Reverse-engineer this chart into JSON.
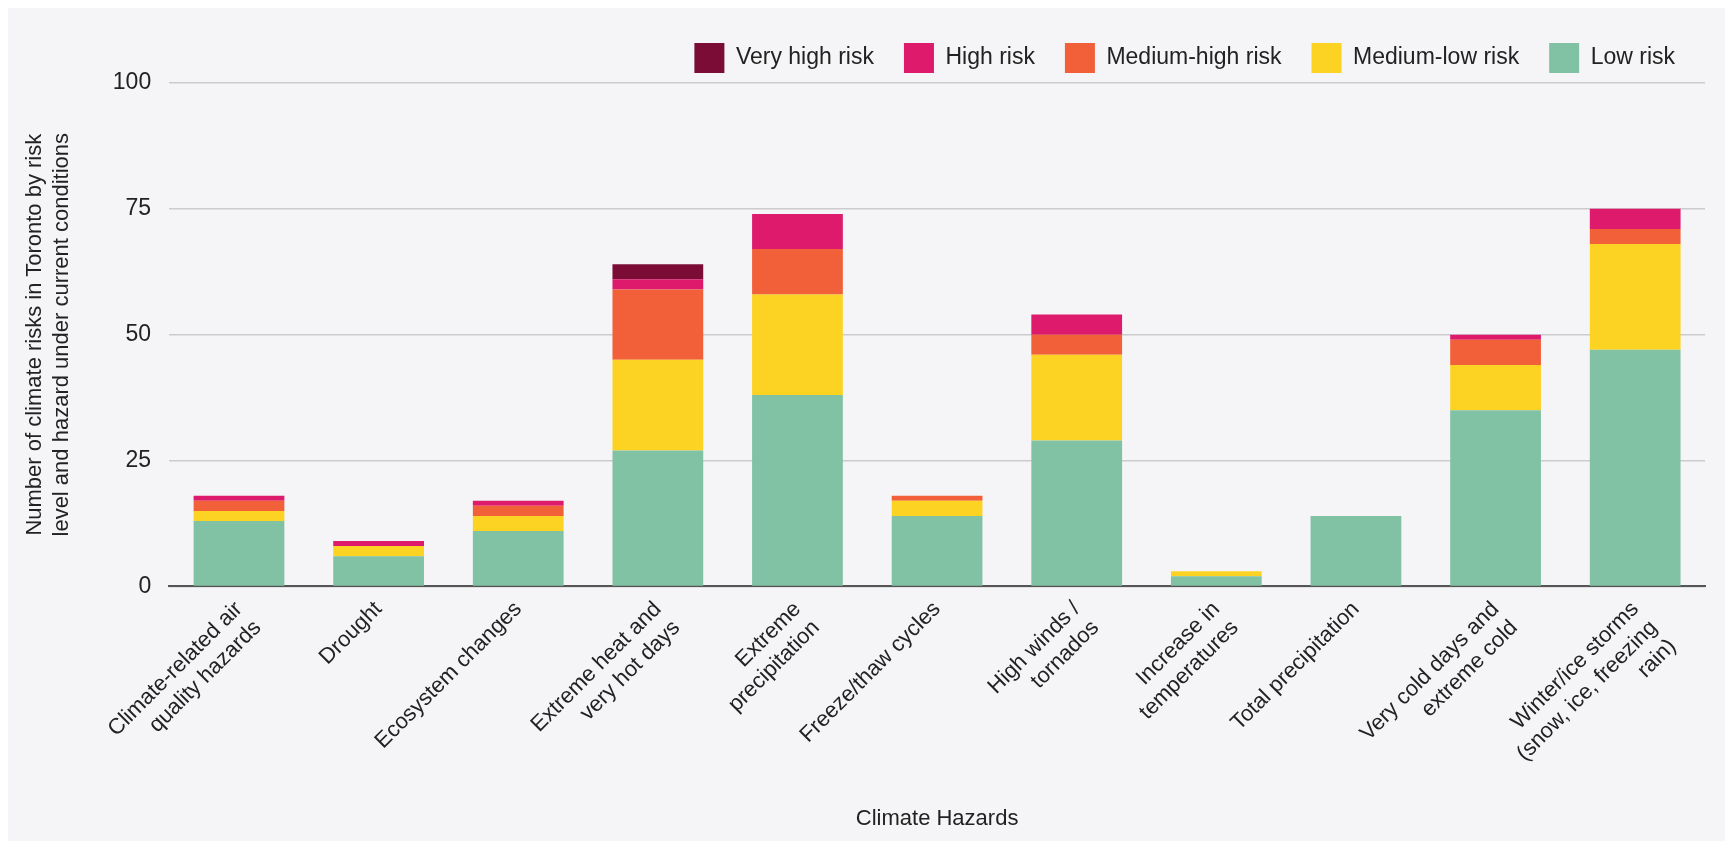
{
  "chart_data": {
    "type": "bar",
    "stacked": true,
    "xlabel": "Climate Hazards",
    "ylabel": "Number of climate risks in Toronto by risk level and hazard under current conditions",
    "categories": [
      "Climate-related air quality hazards",
      "Drought",
      "Ecosystem changes",
      "Extreme heat and very hot days",
      "Extreme precipitation",
      "Freeze/thaw cycles",
      "High winds / tornados",
      "Increase in temperatures",
      "Total precipitation",
      "Very cold days and extreme cold",
      "Winter/ice storms (snow, ice, freezing rain)"
    ],
    "series": [
      {
        "name": "Low risk",
        "color": "#82c2a4",
        "values": [
          13,
          6,
          11,
          27,
          38,
          14,
          29,
          2,
          14,
          35,
          47
        ]
      },
      {
        "name": "Medium-low risk",
        "color": "#fdd323",
        "values": [
          2,
          2,
          3,
          18,
          20,
          3,
          17,
          1,
          0,
          9,
          21
        ]
      },
      {
        "name": "Medium-high risk",
        "color": "#f2603a",
        "values": [
          2,
          0,
          2,
          14,
          9,
          1,
          4,
          0,
          0,
          5,
          3
        ]
      },
      {
        "name": "High risk",
        "color": "#dd1a6b",
        "values": [
          1,
          1,
          1,
          2,
          7,
          0,
          4,
          0,
          0,
          1,
          4
        ]
      },
      {
        "name": "Very high risk",
        "color": "#7a0c35",
        "values": [
          0,
          0,
          0,
          3,
          0,
          0,
          0,
          0,
          0,
          0,
          0
        ]
      }
    ],
    "ylim": [
      0,
      100
    ],
    "yticks": [
      0,
      25,
      50,
      75,
      100
    ],
    "grid": "y",
    "legend": "top"
  }
}
